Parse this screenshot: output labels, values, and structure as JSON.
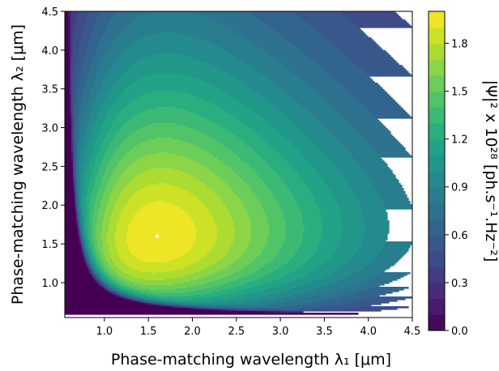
{
  "chart_data": {
    "type": "heatmap",
    "subtype": "filled-contour",
    "xlabel": "Phase-matching wavelength λ₁ [μm]",
    "ylabel": "Phase-matching wavelength λ₂ [μm]",
    "colorbar_label": "|Ψ|² x 10²⁸ [ph.s⁻¹.Hz⁻²]",
    "xlim": [
      0.55,
      4.5
    ],
    "ylim": [
      0.55,
      4.5
    ],
    "x_ticks": [
      "1.0",
      "1.5",
      "2.0",
      "2.5",
      "3.0",
      "3.5",
      "4.0",
      "4.5"
    ],
    "y_ticks": [
      "1.0",
      "1.5",
      "2.0",
      "2.5",
      "3.0",
      "3.5",
      "4.0",
      "4.5"
    ],
    "colorbar_ticks": [
      "0.0",
      "0.3",
      "0.6",
      "0.9",
      "1.2",
      "1.5",
      "1.8"
    ],
    "colorbar_range": [
      0.0,
      2.0
    ],
    "colormap": "viridis",
    "levels": 20,
    "peak": {
      "x": 1.6,
      "y": 1.6,
      "value": 2.0
    },
    "zero_region": "lower-left below hyperbolic boundary",
    "grid": false
  }
}
